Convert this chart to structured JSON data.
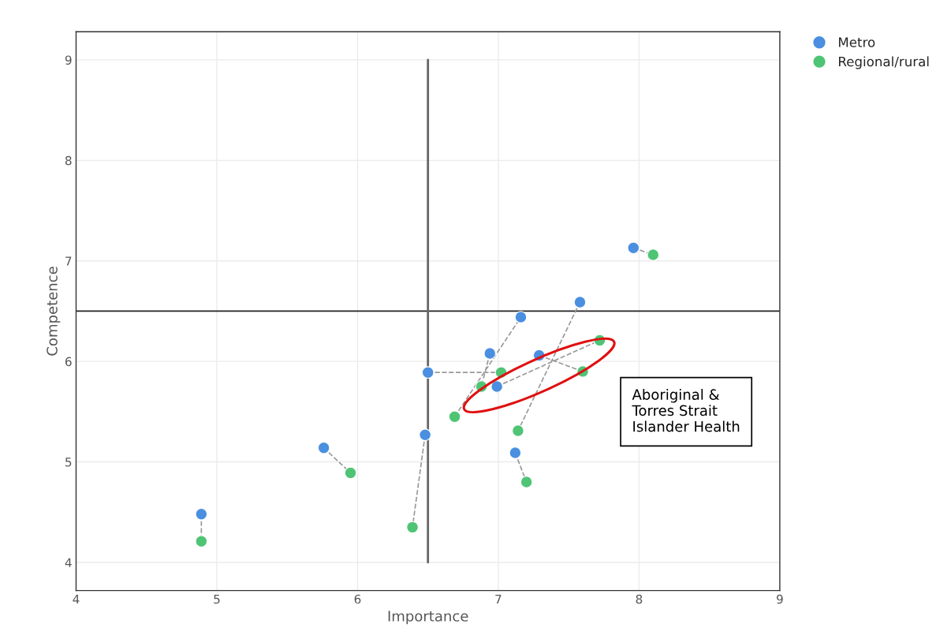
{
  "chart_data": {
    "type": "scatter",
    "xlabel": "Importance",
    "ylabel": "Competence",
    "xlim": [
      4,
      9
    ],
    "ylim": [
      3.72,
      9.28
    ],
    "xticks": [
      4,
      5,
      6,
      7,
      8,
      9
    ],
    "yticks": [
      4,
      5,
      6,
      7,
      8,
      9
    ],
    "grid": true,
    "legend": "top right",
    "marker": "circle",
    "series": [
      {
        "type": "line",
        "color": "#999999",
        "line_style": "dashed",
        "marker": "none",
        "x": [
          4.89,
          4.89,
          null,
          5.76,
          5.95,
          null,
          6.48,
          6.39,
          null,
          6.5,
          7.02,
          null,
          6.94,
          6.88,
          null,
          6.69,
          7.16,
          null,
          6.99,
          7.72,
          null,
          7.29,
          7.6,
          null,
          7.12,
          7.2,
          null,
          7.58,
          7.14,
          null,
          7.96,
          8.1
        ],
        "values": [
          4.48,
          4.21,
          null,
          5.14,
          4.89,
          null,
          5.27,
          4.35,
          null,
          5.89,
          5.89,
          null,
          6.08,
          5.75,
          null,
          5.45,
          6.44,
          null,
          5.75,
          6.21,
          null,
          6.06,
          5.9,
          null,
          5.09,
          4.8,
          null,
          6.59,
          5.31,
          null,
          7.13,
          7.06
        ]
      },
      {
        "type": "line",
        "color": "#666666",
        "line_style": "solid",
        "marker": "none",
        "x": [
          6.5,
          6.5
        ],
        "values": [
          4,
          9
        ]
      },
      {
        "name": "Metro",
        "color": "#4a8fe0",
        "x": [
          4.89,
          5.76,
          6.48,
          6.5,
          6.94,
          6.99,
          7.16,
          7.29,
          7.12,
          7.58,
          7.96
        ],
        "values": [
          4.48,
          5.14,
          5.27,
          5.89,
          6.08,
          5.75,
          6.44,
          6.06,
          5.09,
          6.59,
          7.13
        ]
      },
      {
        "name": "Regional/rural",
        "color": "#4fc475",
        "x": [
          4.89,
          5.95,
          6.39,
          6.69,
          6.88,
          7.02,
          7.14,
          7.2,
          7.6,
          7.72,
          8.1
        ],
        "values": [
          4.21,
          4.89,
          4.35,
          5.45,
          5.75,
          5.89,
          5.31,
          4.8,
          5.9,
          6.21,
          7.06
        ]
      }
    ],
    "ref_lines": [
      {
        "axis": "y",
        "value": 6.5,
        "color": "#222222",
        "line_style": "solid"
      }
    ],
    "annotations": [
      "Aboriginal &\nTorres Strait\nIslander Health"
    ]
  }
}
